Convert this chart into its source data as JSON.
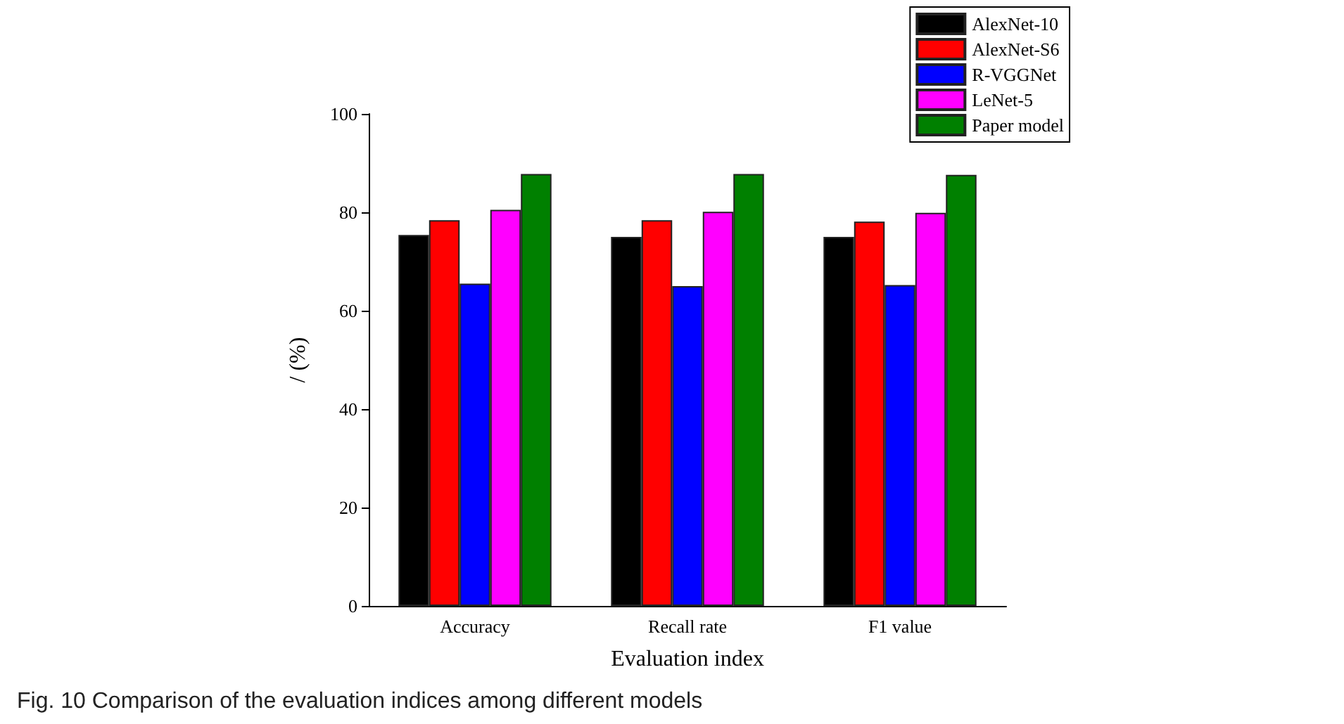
{
  "chart_data": {
    "type": "bar",
    "xlabel": "Evaluation index",
    "ylabel": "/ (%)",
    "categories": [
      "Accuracy",
      "Recall rate",
      "F1 value"
    ],
    "series": [
      {
        "name": "AlexNet-10",
        "color": "#000000",
        "values": [
          75.4,
          75.0,
          75.0
        ]
      },
      {
        "name": "AlexNet-S6",
        "color": "#ff0000",
        "values": [
          78.4,
          78.4,
          78.1
        ]
      },
      {
        "name": "R-VGGNet",
        "color": "#0000ff",
        "values": [
          65.5,
          65.0,
          65.2
        ]
      },
      {
        "name": "LeNet-5",
        "color": "#ff00ff",
        "values": [
          80.5,
          80.1,
          79.9
        ]
      },
      {
        "name": "Paper model",
        "color": "#008000",
        "values": [
          87.8,
          87.8,
          87.6
        ]
      }
    ],
    "ylim": [
      0,
      100
    ],
    "yticks": [
      0,
      20,
      40,
      60,
      80,
      100
    ],
    "grid": false,
    "legend": "top right",
    "annotations": [
      "Fig. 10 Comparison of the evaluation indices among different models"
    ]
  }
}
